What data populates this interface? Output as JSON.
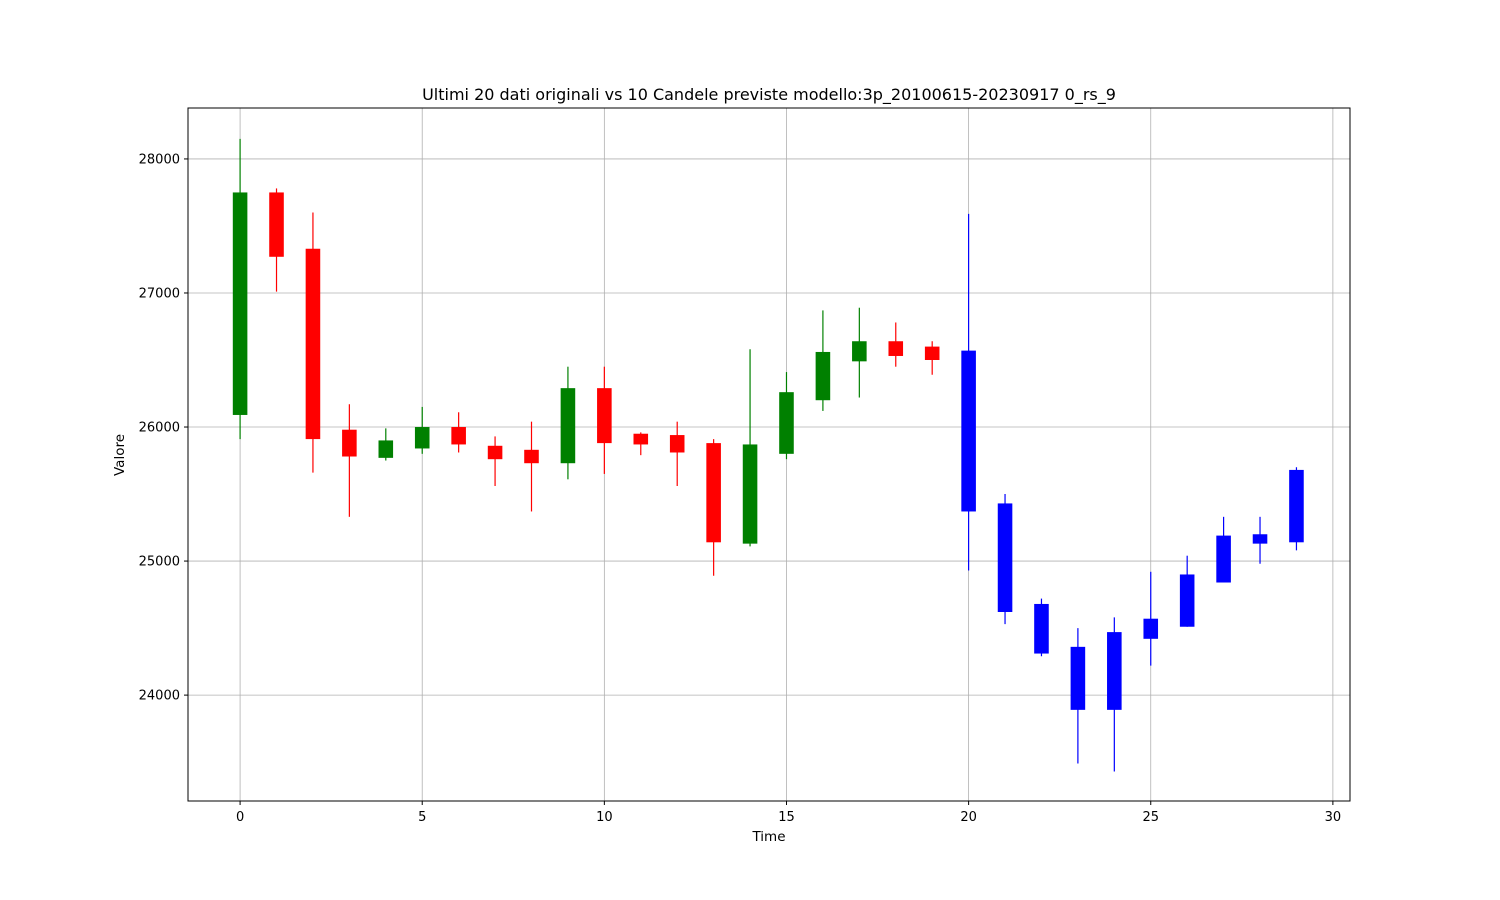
{
  "chart_data": {
    "type": "candlestick",
    "title": "Ultimi 20 dati originali vs 10 Candele previste modello:3p_20100615-20230917 0_rs_9",
    "xlabel": "Time",
    "ylabel": "Valore",
    "xlim": [
      -1.43,
      30.47
    ],
    "ylim": [
      23210,
      28380
    ],
    "xticks": [
      0,
      5,
      10,
      15,
      20,
      25,
      30
    ],
    "yticks": [
      24000,
      25000,
      26000,
      27000,
      28000
    ],
    "grid": true,
    "colors": {
      "up": "#008000",
      "down": "#ff0000",
      "forecast": "#0000ff",
      "grid": "#b0b0b0",
      "axes": "#000000"
    },
    "series": [
      {
        "candles": [
          {
            "t": 0,
            "open": 26090,
            "high": 28150,
            "low": 25910,
            "close": 27750
          },
          {
            "t": 1,
            "open": 27750,
            "high": 27780,
            "low": 27010,
            "close": 27270
          },
          {
            "t": 2,
            "open": 27330,
            "high": 27600,
            "low": 25660,
            "close": 25910
          },
          {
            "t": 3,
            "open": 25980,
            "high": 26170,
            "low": 25330,
            "close": 25780
          },
          {
            "t": 4,
            "open": 25770,
            "high": 25990,
            "low": 25750,
            "close": 25900
          },
          {
            "t": 5,
            "open": 25840,
            "high": 26150,
            "low": 25800,
            "close": 26000
          },
          {
            "t": 6,
            "open": 26000,
            "high": 26110,
            "low": 25810,
            "close": 25870
          },
          {
            "t": 7,
            "open": 25860,
            "high": 25930,
            "low": 25560,
            "close": 25760
          },
          {
            "t": 8,
            "open": 25830,
            "high": 26040,
            "low": 25370,
            "close": 25730
          },
          {
            "t": 9,
            "open": 25730,
            "high": 26450,
            "low": 25610,
            "close": 26290
          },
          {
            "t": 10,
            "open": 26290,
            "high": 26450,
            "low": 25650,
            "close": 25880
          },
          {
            "t": 11,
            "open": 25950,
            "high": 25960,
            "low": 25790,
            "close": 25870
          },
          {
            "t": 12,
            "open": 25940,
            "high": 26040,
            "low": 25560,
            "close": 25810
          },
          {
            "t": 13,
            "open": 25880,
            "high": 25910,
            "low": 24890,
            "close": 25140
          },
          {
            "t": 14,
            "open": 25130,
            "high": 26580,
            "low": 25110,
            "close": 25870
          },
          {
            "t": 15,
            "open": 25800,
            "high": 26410,
            "low": 25760,
            "close": 26260
          },
          {
            "t": 16,
            "open": 26200,
            "high": 26870,
            "low": 26120,
            "close": 26560
          },
          {
            "t": 17,
            "open": 26490,
            "high": 26890,
            "low": 26220,
            "close": 26640
          },
          {
            "t": 18,
            "open": 26640,
            "high": 26780,
            "low": 26450,
            "close": 26530
          },
          {
            "t": 19,
            "open": 26600,
            "high": 26640,
            "low": 26390,
            "close": 26500
          }
        ]
      },
      {
        "candles": [
          {
            "t": 20,
            "open": 25370,
            "high": 27590,
            "low": 24930,
            "close": 26570
          },
          {
            "t": 21,
            "open": 24620,
            "high": 25500,
            "low": 24530,
            "close": 25430
          },
          {
            "t": 22,
            "open": 24310,
            "high": 24720,
            "low": 24290,
            "close": 24680
          },
          {
            "t": 23,
            "open": 23890,
            "high": 24500,
            "low": 23490,
            "close": 24360
          },
          {
            "t": 24,
            "open": 23890,
            "high": 24580,
            "low": 23430,
            "close": 24470
          },
          {
            "t": 25,
            "open": 24420,
            "high": 24920,
            "low": 24220,
            "close": 24570
          },
          {
            "t": 26,
            "open": 24510,
            "high": 25040,
            "low": 24510,
            "close": 24900
          },
          {
            "t": 27,
            "open": 24840,
            "high": 25330,
            "low": 24840,
            "close": 25190
          },
          {
            "t": 28,
            "open": 25130,
            "high": 25330,
            "low": 24980,
            "close": 25200
          },
          {
            "t": 29,
            "open": 25140,
            "high": 25700,
            "low": 25080,
            "close": 25680
          }
        ]
      }
    ]
  }
}
